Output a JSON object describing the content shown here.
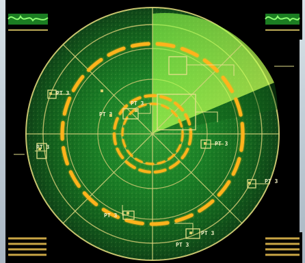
{
  "screen": {
    "title": "",
    "background": "#c8d4dc",
    "radar_primary": "#1a8b2b",
    "radar_secondary": "#0b4f18",
    "radar_highlight": "#6dd43a",
    "ring_accent": "#ffb31a",
    "line_color": "#d6d37c"
  },
  "targets": [
    {
      "label": "PT 3"
    },
    {
      "label": "PT 3"
    },
    {
      "label": "PT 3"
    },
    {
      "label": "PT 3"
    },
    {
      "label": "PT 3"
    },
    {
      "label": "PT 3"
    },
    {
      "label": "PT 3"
    },
    {
      "label": "PT 3"
    },
    {
      "label": "PT 3"
    }
  ],
  "indicators": {
    "left_top": "signal-meter-icon",
    "right_top": "signal-meter-icon",
    "left_bottom": "level-bars-icon",
    "right_bottom": "level-bars-icon"
  }
}
